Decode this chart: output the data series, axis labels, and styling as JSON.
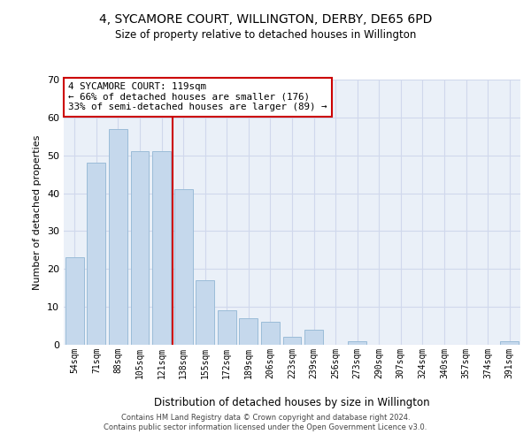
{
  "title": "4, SYCAMORE COURT, WILLINGTON, DERBY, DE65 6PD",
  "subtitle": "Size of property relative to detached houses in Willington",
  "xlabel": "Distribution of detached houses by size in Willington",
  "ylabel": "Number of detached properties",
  "bar_color": "#c5d8ec",
  "bar_edgecolor": "#9bbcd8",
  "vline_color": "#cc0000",
  "vline_x": 4.5,
  "categories": [
    "54sqm",
    "71sqm",
    "88sqm",
    "105sqm",
    "121sqm",
    "138sqm",
    "155sqm",
    "172sqm",
    "189sqm",
    "206sqm",
    "223sqm",
    "239sqm",
    "256sqm",
    "273sqm",
    "290sqm",
    "307sqm",
    "324sqm",
    "340sqm",
    "357sqm",
    "374sqm",
    "391sqm"
  ],
  "values": [
    23,
    48,
    57,
    51,
    51,
    41,
    17,
    9,
    7,
    6,
    2,
    4,
    0,
    1,
    0,
    0,
    0,
    0,
    0,
    0,
    1
  ],
  "ylim": [
    0,
    70
  ],
  "yticks": [
    0,
    10,
    20,
    30,
    40,
    50,
    60,
    70
  ],
  "annotation_title": "4 SYCAMORE COURT: 119sqm",
  "annotation_line1": "← 66% of detached houses are smaller (176)",
  "annotation_line2": "33% of semi-detached houses are larger (89) →",
  "annotation_box_color": "#ffffff",
  "annotation_box_edgecolor": "#cc0000",
  "footer_line1": "Contains HM Land Registry data © Crown copyright and database right 2024.",
  "footer_line2": "Contains public sector information licensed under the Open Government Licence v3.0.",
  "grid_color": "#d0d8ec",
  "background_color": "#eaf0f8"
}
